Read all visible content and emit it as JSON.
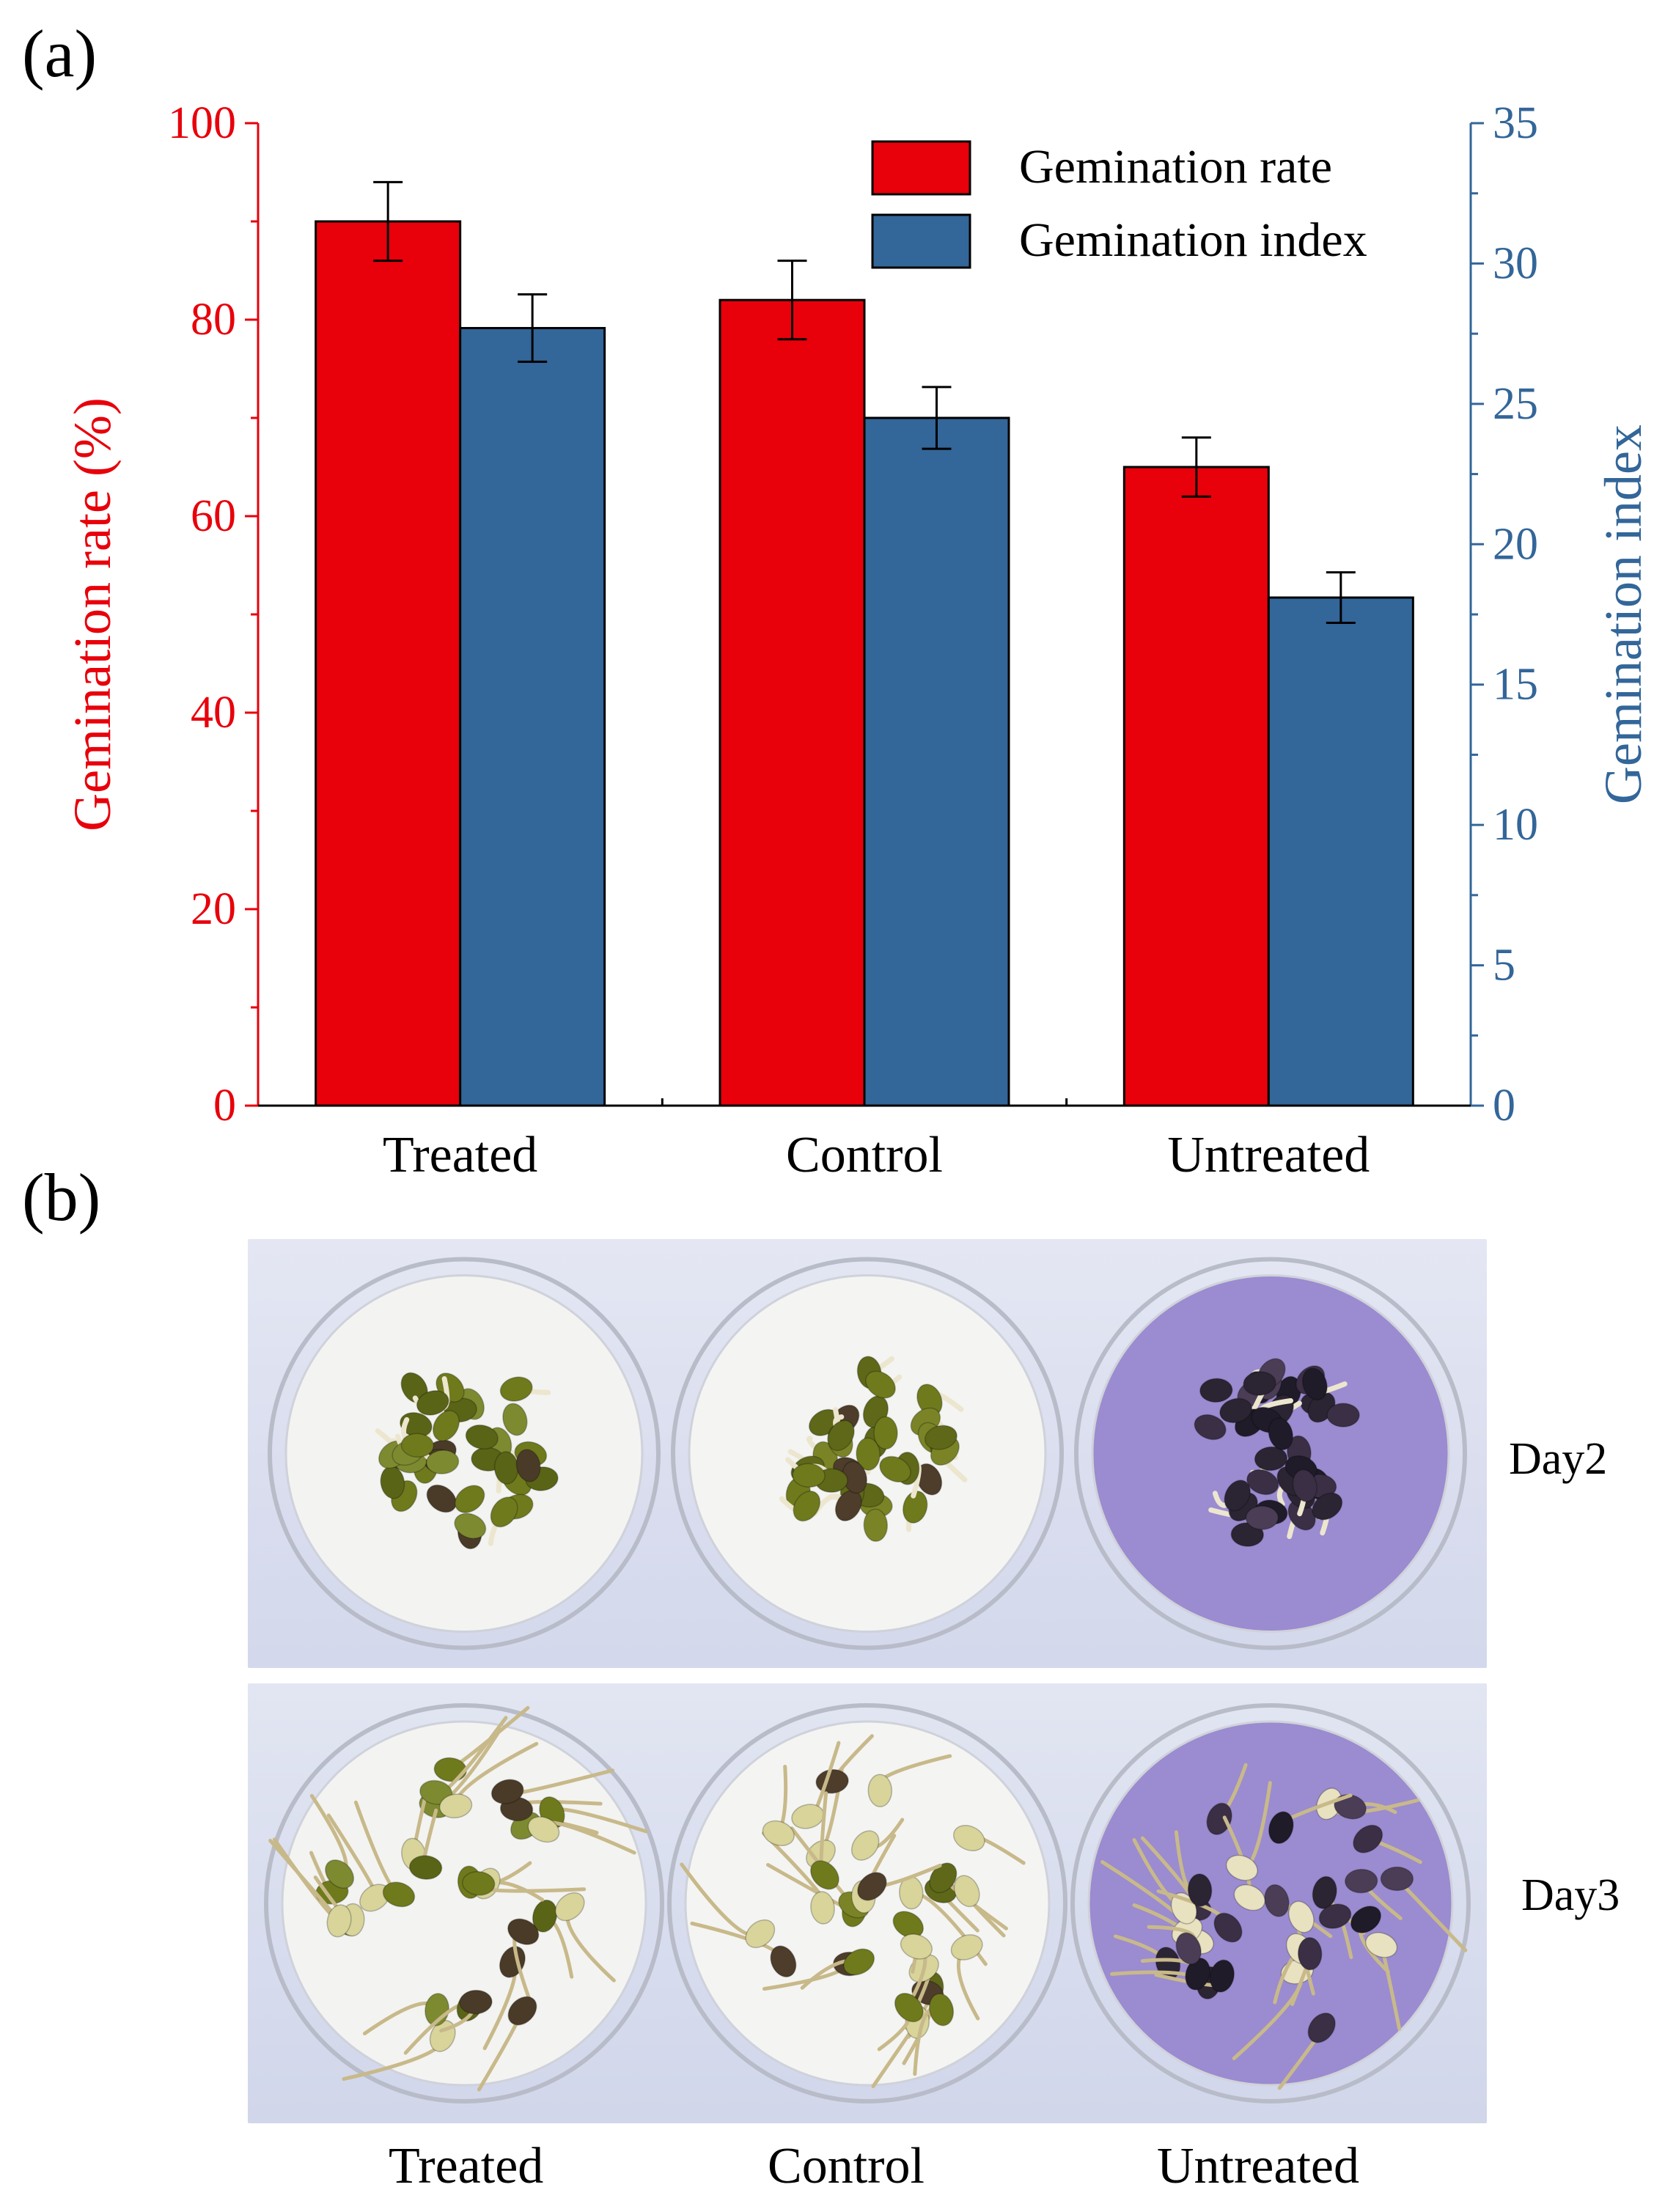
{
  "panel_a_label": "(a)",
  "panel_b_label": "(b)",
  "chart_data": {
    "type": "bar",
    "categories": [
      "Treated",
      "Control",
      "Untreated"
    ],
    "series": [
      {
        "name": "Gemination rate",
        "axis": "left",
        "color": "#e8000b",
        "values": [
          90,
          82,
          65
        ],
        "errors": [
          4,
          4,
          3
        ]
      },
      {
        "name": "Gemination index",
        "axis": "right",
        "color": "#336699",
        "values": [
          27.7,
          24.5,
          18.1
        ],
        "errors": [
          1.2,
          1.1,
          0.9
        ]
      }
    ],
    "ylabel": "Gemination rate (%)",
    "ylabel_color": "#e8000b",
    "ylim": [
      0,
      100
    ],
    "yticks": [
      0,
      20,
      40,
      60,
      80,
      100
    ],
    "y2label": "Gemination index",
    "y2label_color": "#336699",
    "y2lim": [
      0,
      35
    ],
    "y2ticks": [
      0,
      5,
      10,
      15,
      20,
      25,
      30,
      35
    ],
    "legend_position": "top-right",
    "grid": false
  },
  "photo": {
    "row_labels": [
      "Day2",
      "Day3"
    ],
    "column_labels": [
      "Treated",
      "Control",
      "Untreated"
    ]
  }
}
